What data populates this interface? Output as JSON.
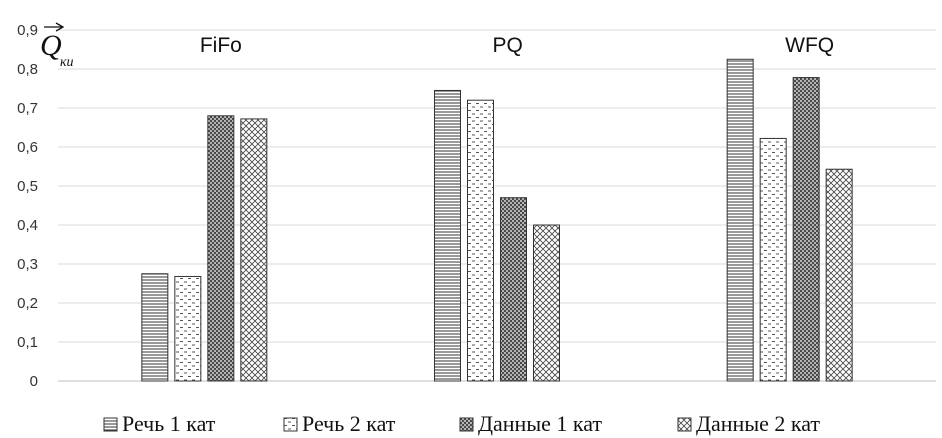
{
  "chart_data": {
    "type": "bar",
    "categories": [
      "FiFo",
      "PQ",
      "WFQ"
    ],
    "series": [
      {
        "name": "Речь 1 кат",
        "values": [
          0.275,
          0.745,
          0.825
        ],
        "pattern": "hlines"
      },
      {
        "name": "Речь 2 кат",
        "values": [
          0.268,
          0.72,
          0.622
        ],
        "pattern": "dashes"
      },
      {
        "name": "Данные 1 кат",
        "values": [
          0.68,
          0.47,
          0.778
        ],
        "pattern": "dense-dots"
      },
      {
        "name": "Данные 2 кат",
        "values": [
          0.672,
          0.4,
          0.543
        ],
        "pattern": "crosshatch"
      }
    ],
    "yticks": [
      "0",
      "0,1",
      "0,2",
      "0,3",
      "0,4",
      "0,5",
      "0,6",
      "0,7",
      "0,8",
      "0,9"
    ],
    "ylim": [
      0,
      0.9
    ],
    "ylabel": {
      "base": "Q",
      "sub": "ки",
      "vector_arrow": true
    },
    "grid": true,
    "legend_position": "bottom",
    "colors": {
      "stroke": "#333333",
      "grid": "#d9d9d9",
      "fill": "#ffffff"
    }
  }
}
